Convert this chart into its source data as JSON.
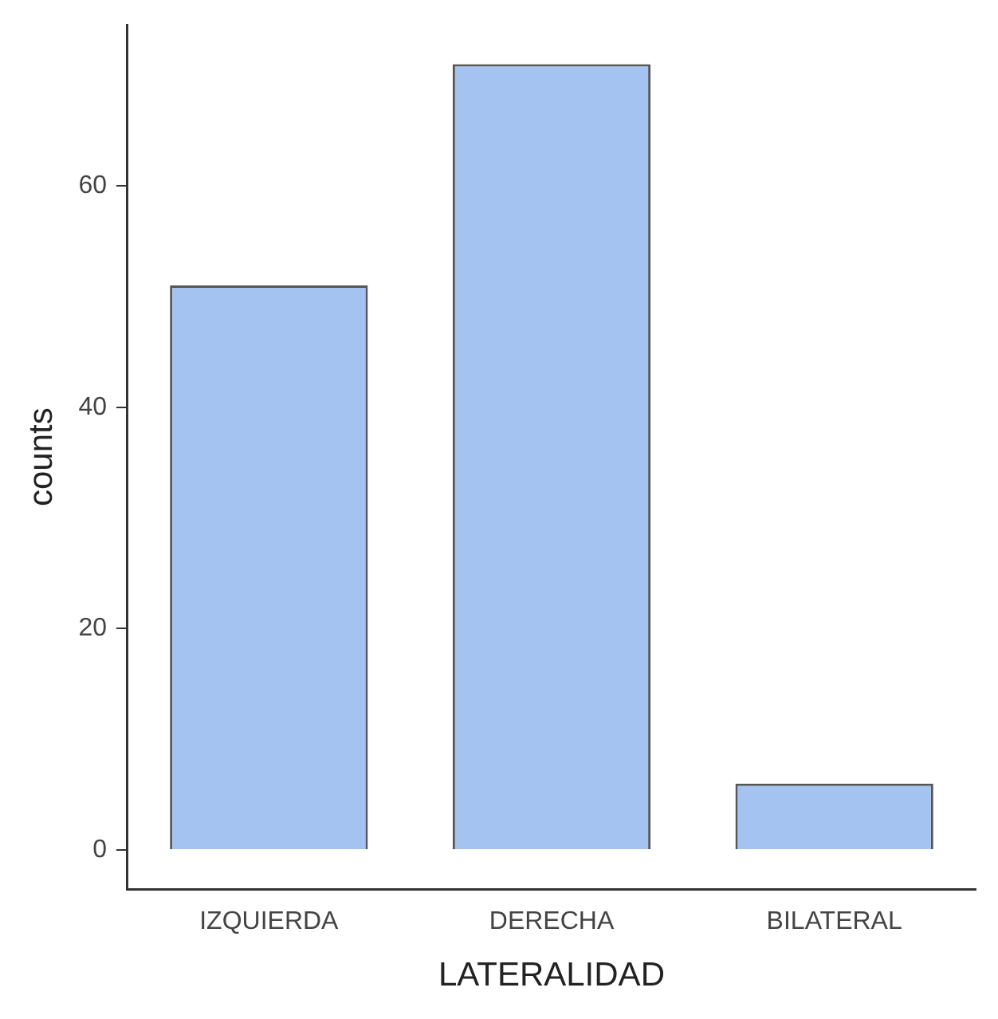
{
  "chart_data": {
    "type": "bar",
    "xlabel": "LATERALIDAD",
    "ylabel": "counts",
    "categories": [
      "IZQUIERDA",
      "DERECHA",
      "BILATERAL"
    ],
    "values": [
      51,
      71,
      6
    ],
    "color": "#a4c3f0",
    "ylim": [
      -3.55,
      74.55
    ],
    "yticks": [
      0,
      20,
      40,
      60
    ],
    "grid": false,
    "legend": false
  }
}
